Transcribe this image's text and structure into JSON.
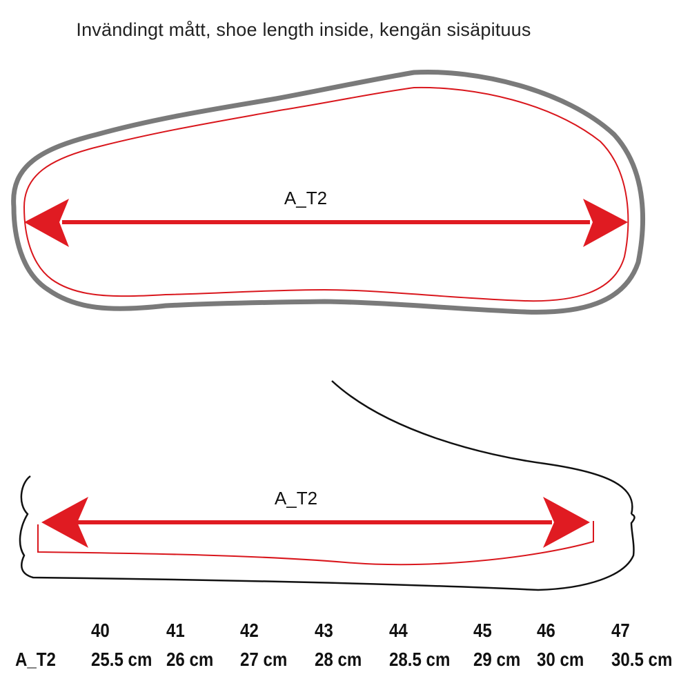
{
  "title": "Invändingt mått, shoe length inside, kengän sisäpituus",
  "diagrams": {
    "top_label": "A_T2",
    "side_label": "A_T2"
  },
  "colors": {
    "outline_gray": "#7a7a7a",
    "insole_red": "#d9161c",
    "arrow_red": "#e01b22",
    "line_black": "#111111"
  },
  "size_table": {
    "row_label": "A_T2",
    "columns": [
      {
        "size": "40",
        "length": "25.5 cm"
      },
      {
        "size": "41",
        "length": "26 cm"
      },
      {
        "size": "42",
        "length": "27 cm"
      },
      {
        "size": "43",
        "length": "28 cm"
      },
      {
        "size": "44",
        "length": "28.5 cm"
      },
      {
        "size": "45",
        "length": "29 cm"
      },
      {
        "size": "46",
        "length": "30 cm"
      },
      {
        "size": "47",
        "length": "30.5 cm"
      }
    ]
  }
}
